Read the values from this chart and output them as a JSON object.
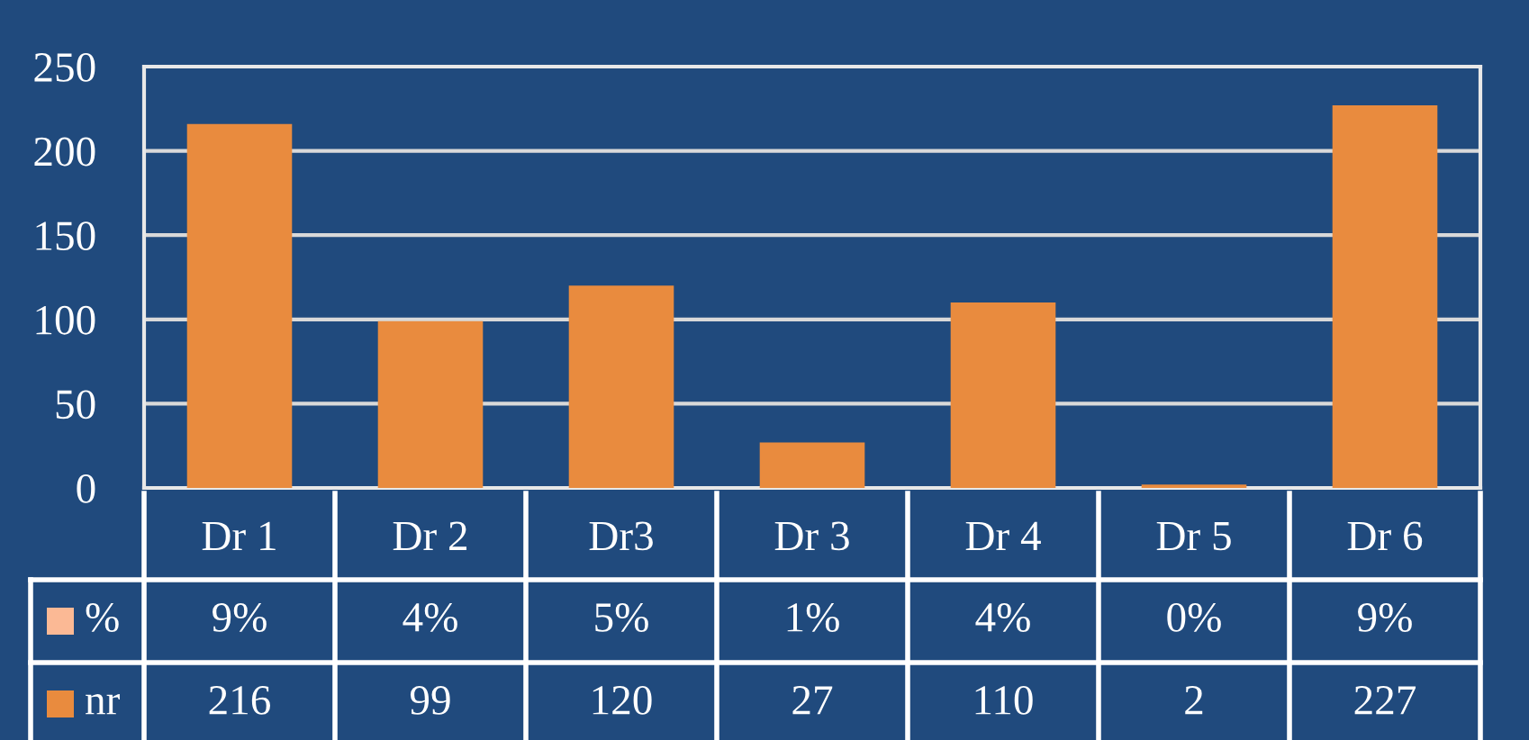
{
  "chart_data": {
    "type": "bar",
    "categories": [
      "Dr 1",
      "Dr 2",
      "Dr3",
      "Dr 3",
      "Dr 4",
      "Dr 5",
      "Dr 6"
    ],
    "series": [
      {
        "name": "%",
        "color": "#fbb995",
        "values": [
          0.09,
          0.04,
          0.05,
          0.01,
          0.04,
          0,
          0.09
        ],
        "value_labels": [
          "9%",
          "4%",
          "5%",
          "1%",
          "4%",
          "0%",
          "9%"
        ]
      },
      {
        "name": "nr",
        "color": "#e98b3e",
        "values": [
          216,
          99,
          120,
          27,
          110,
          2,
          227
        ],
        "value_labels": [
          "216",
          "99",
          "120",
          "27",
          "110",
          "2",
          "227"
        ]
      }
    ],
    "ylim": [
      0,
      250
    ],
    "yticks": [
      0,
      50,
      100,
      150,
      200,
      250
    ],
    "grid": "y",
    "legend": "bottom"
  }
}
